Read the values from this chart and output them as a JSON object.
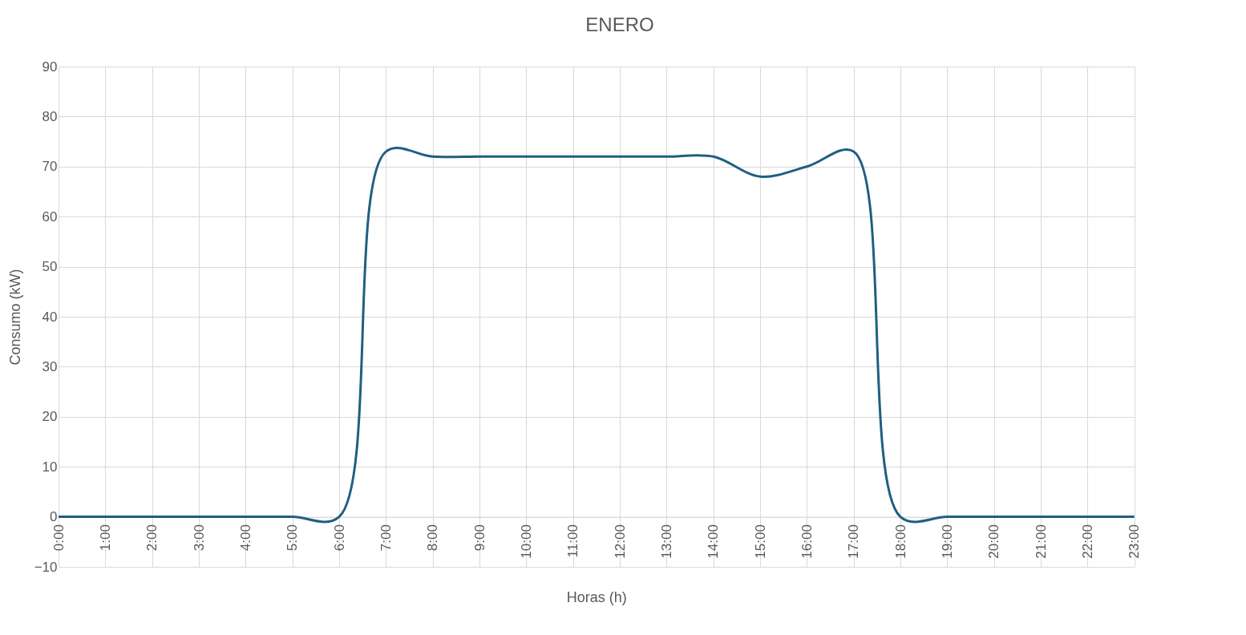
{
  "chart_data": {
    "type": "line",
    "title": "ENERO",
    "xlabel": "Horas (h)",
    "ylabel": "Consumo (kW)",
    "categories": [
      "0:00",
      "1:00",
      "2:00",
      "3:00",
      "4:00",
      "5:00",
      "6:00",
      "7:00",
      "8:00",
      "9:00",
      "10:00",
      "11:00",
      "12:00",
      "13:00",
      "14:00",
      "15:00",
      "16:00",
      "17:00",
      "18:00",
      "19:00",
      "20:00",
      "21:00",
      "22:00",
      "23:00"
    ],
    "series": [
      {
        "color": "#1f5f82",
        "values": [
          0,
          0,
          0,
          0,
          0,
          0,
          0,
          73,
          72,
          72,
          72,
          72,
          72,
          72,
          72,
          68,
          70,
          73,
          0,
          0,
          0,
          0,
          0,
          0
        ]
      }
    ],
    "ylim": [
      -10,
      90
    ],
    "yticks": [
      -10,
      0,
      10,
      20,
      30,
      40,
      50,
      60,
      70,
      80,
      90
    ],
    "grid": true,
    "marker": "none",
    "line_style": "solid"
  }
}
